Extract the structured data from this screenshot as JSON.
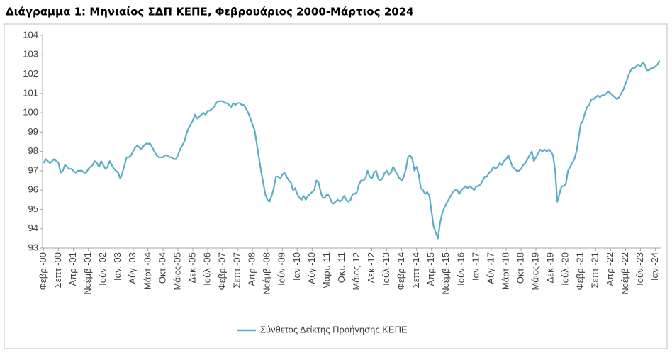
{
  "chart_data": {
    "type": "line",
    "title": "Διάγραμμα 1: Μηνιαίος ΣΔΠ ΚΕΠΕ, Φεβρουάριος 2000-Μάρτιος 2024",
    "categories": [
      "Φεβρ.-00",
      null,
      null,
      null,
      null,
      null,
      null,
      "Σεπτ.-00",
      null,
      null,
      null,
      null,
      null,
      null,
      "Απρ.-01",
      null,
      null,
      null,
      null,
      null,
      null,
      "Νοέμβ.-01",
      null,
      null,
      null,
      null,
      null,
      null,
      "Ιούν.-02",
      null,
      null,
      null,
      null,
      null,
      null,
      "Ιαν.-03",
      null,
      null,
      null,
      null,
      null,
      null,
      "Αύγ.-03",
      null,
      null,
      null,
      null,
      null,
      null,
      "Μάρτ.-04",
      null,
      null,
      null,
      null,
      null,
      null,
      "Οκτ.-04",
      null,
      null,
      null,
      null,
      null,
      null,
      "Μάιος-05",
      null,
      null,
      null,
      null,
      null,
      null,
      "Δεκ.-05",
      null,
      null,
      null,
      null,
      null,
      null,
      "Ιούλ.-06",
      null,
      null,
      null,
      null,
      null,
      null,
      "Φεβρ.-07",
      null,
      null,
      null,
      null,
      null,
      null,
      "Σεπτ.-07",
      null,
      null,
      null,
      null,
      null,
      null,
      "Απρ.-08",
      null,
      null,
      null,
      null,
      null,
      null,
      "Νοέμβ.-08",
      null,
      null,
      null,
      null,
      null,
      null,
      "Ιούν.-09",
      null,
      null,
      null,
      null,
      null,
      null,
      "Ιαν.-10",
      null,
      null,
      null,
      null,
      null,
      null,
      "Αύγ.-10",
      null,
      null,
      null,
      null,
      null,
      null,
      "Μάρτ.-11",
      null,
      null,
      null,
      null,
      null,
      null,
      "Οκτ.-11",
      null,
      null,
      null,
      null,
      null,
      null,
      "Μάιος-12",
      null,
      null,
      null,
      null,
      null,
      null,
      "Δεκ.-12",
      null,
      null,
      null,
      null,
      null,
      null,
      "Ιούλ.-13",
      null,
      null,
      null,
      null,
      null,
      null,
      "Φεβρ.-14",
      null,
      null,
      null,
      null,
      null,
      null,
      "Σεπτ.-14",
      null,
      null,
      null,
      null,
      null,
      null,
      "Απρ.-15",
      null,
      null,
      null,
      null,
      null,
      null,
      "Νοέμβ.-15",
      null,
      null,
      null,
      null,
      null,
      null,
      "Ιούν.-16",
      null,
      null,
      null,
      null,
      null,
      null,
      "Ιαν.-17",
      null,
      null,
      null,
      null,
      null,
      null,
      "Αύγ.-17",
      null,
      null,
      null,
      null,
      null,
      null,
      "Μάρτ.-18",
      null,
      null,
      null,
      null,
      null,
      null,
      "Οκτ.-18",
      null,
      null,
      null,
      null,
      null,
      null,
      "Μάιος-19",
      null,
      null,
      null,
      null,
      null,
      null,
      "Δεκ.-19",
      null,
      null,
      null,
      null,
      null,
      null,
      "Ιούλ.-20",
      null,
      null,
      null,
      null,
      null,
      null,
      "Φεβρ.-21",
      null,
      null,
      null,
      null,
      null,
      null,
      "Σεπτ.-21",
      null,
      null,
      null,
      null,
      null,
      null,
      "Απρ.-22",
      null,
      null,
      null,
      null,
      null,
      null,
      "Νοέμβ.-22",
      null,
      null,
      null,
      null,
      null,
      null,
      "Ιούν.-23",
      null,
      null,
      null,
      null,
      null,
      null,
      "Ιαν.-24",
      null,
      null
    ],
    "series": [
      {
        "name": "Σύνθετος Δείκτης Προήγησης ΚΕΠΕ",
        "color": "#5aaec4",
        "values": [
          97.4,
          97.6,
          97.5,
          97.4,
          97.5,
          97.6,
          97.5,
          97.4,
          96.9,
          97.0,
          97.3,
          97.2,
          97.1,
          97.1,
          97.0,
          96.9,
          97.0,
          97.0,
          97.0,
          96.9,
          96.9,
          97.1,
          97.2,
          97.3,
          97.5,
          97.4,
          97.2,
          97.5,
          97.3,
          97.1,
          97.2,
          97.5,
          97.3,
          97.1,
          97.0,
          96.9,
          96.6,
          96.9,
          97.3,
          97.7,
          97.7,
          97.8,
          98.0,
          98.2,
          98.3,
          98.2,
          98.1,
          98.3,
          98.4,
          98.4,
          98.4,
          98.2,
          98.0,
          97.8,
          97.7,
          97.7,
          97.7,
          97.8,
          97.8,
          97.7,
          97.7,
          97.6,
          97.6,
          97.8,
          98.1,
          98.3,
          98.5,
          98.9,
          99.2,
          99.4,
          99.6,
          99.9,
          99.7,
          99.8,
          99.9,
          100.0,
          99.9,
          100.1,
          100.1,
          100.2,
          100.3,
          100.5,
          100.6,
          100.6,
          100.6,
          100.5,
          100.5,
          100.4,
          100.3,
          100.5,
          100.4,
          100.5,
          100.5,
          100.4,
          100.4,
          100.2,
          100.0,
          99.7,
          99.4,
          99.1,
          98.4,
          97.7,
          97.0,
          96.4,
          95.8,
          95.5,
          95.4,
          95.7,
          96.1,
          96.7,
          96.7,
          96.6,
          96.8,
          96.9,
          96.7,
          96.5,
          96.4,
          96.0,
          96.1,
          95.8,
          95.6,
          95.5,
          95.7,
          95.5,
          95.7,
          95.8,
          95.9,
          96.0,
          96.5,
          96.4,
          95.9,
          95.6,
          95.6,
          95.8,
          95.7,
          95.4,
          95.3,
          95.4,
          95.5,
          95.4,
          95.5,
          95.7,
          95.5,
          95.4,
          95.5,
          95.8,
          95.8,
          95.9,
          96.3,
          96.5,
          96.5,
          96.6,
          97.0,
          96.7,
          96.6,
          96.9,
          97.0,
          96.6,
          96.5,
          96.6,
          96.9,
          97.0,
          96.8,
          96.9,
          97.2,
          97.0,
          96.8,
          96.6,
          96.5,
          96.7,
          97.1,
          97.7,
          97.8,
          97.6,
          97.0,
          97.2,
          96.8,
          96.1,
          96.0,
          95.8,
          95.9,
          95.7,
          94.9,
          94.1,
          93.8,
          93.5,
          94.3,
          94.8,
          95.1,
          95.3,
          95.5,
          95.7,
          95.9,
          96.0,
          96.0,
          95.8,
          96.0,
          96.1,
          96.2,
          96.1,
          96.2,
          96.1,
          96.0,
          96.2,
          96.2,
          96.3,
          96.5,
          96.7,
          96.7,
          96.9,
          97.0,
          97.2,
          97.1,
          97.2,
          97.4,
          97.3,
          97.5,
          97.6,
          97.8,
          97.5,
          97.2,
          97.1,
          97.0,
          97.0,
          97.1,
          97.3,
          97.4,
          97.6,
          97.8,
          98.0,
          97.5,
          97.7,
          97.9,
          98.1,
          98.0,
          98.1,
          98.0,
          98.1,
          98.0,
          97.8,
          97.0,
          95.4,
          95.8,
          96.2,
          96.2,
          96.3,
          97.0,
          97.2,
          97.4,
          97.6,
          98.0,
          98.7,
          99.4,
          99.6,
          100.0,
          100.3,
          100.4,
          100.7,
          100.7,
          100.8,
          100.9,
          100.8,
          100.9,
          100.9,
          101.0,
          101.1,
          101.0,
          100.9,
          100.8,
          100.7,
          100.8,
          101.0,
          101.2,
          101.5,
          101.8,
          102.1,
          102.3,
          102.3,
          102.4,
          102.5,
          102.4,
          102.6,
          102.5,
          102.2,
          102.2,
          102.3,
          102.3,
          102.4,
          102.5,
          102.7
        ]
      }
    ],
    "ylim": [
      93,
      104
    ],
    "yticks": [
      93,
      94,
      95,
      96,
      97,
      98,
      99,
      100,
      101,
      102,
      103,
      104
    ],
    "grid": false
  }
}
